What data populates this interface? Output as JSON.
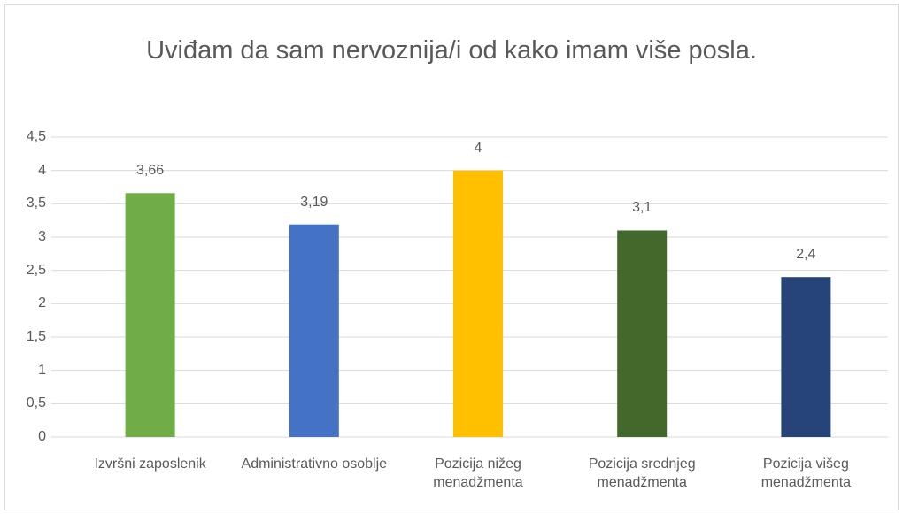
{
  "chart_data": {
    "type": "bar",
    "title": "Uviđam da sam nervoznija/i od kako imam više posla.",
    "categories": [
      "Izvršni zaposlenik",
      "Administrativno osoblje",
      "Pozicija nižeg menadžmenta",
      "Pozicija srednjeg menadžmenta",
      "Pozicija višeg menadžmenta"
    ],
    "values": [
      3.66,
      3.19,
      4,
      3.1,
      2.4
    ],
    "value_labels": [
      "3,66",
      "3,19",
      "4",
      "3,1",
      "2,4"
    ],
    "colors": [
      "#70ad47",
      "#4472c4",
      "#ffc000",
      "#43682b",
      "#264478"
    ],
    "ylim": [
      0,
      4.5
    ],
    "yticks": [
      0,
      {
        "value": 0.5,
        "label": "0,5"
      },
      1,
      {
        "value": 1.5,
        "label": "1,5"
      },
      2,
      {
        "value": 2.5,
        "label": "2,5"
      },
      3,
      {
        "value": 3.5,
        "label": "3,5"
      },
      4,
      {
        "value": 4.5,
        "label": "4,5"
      }
    ],
    "grid": true
  }
}
